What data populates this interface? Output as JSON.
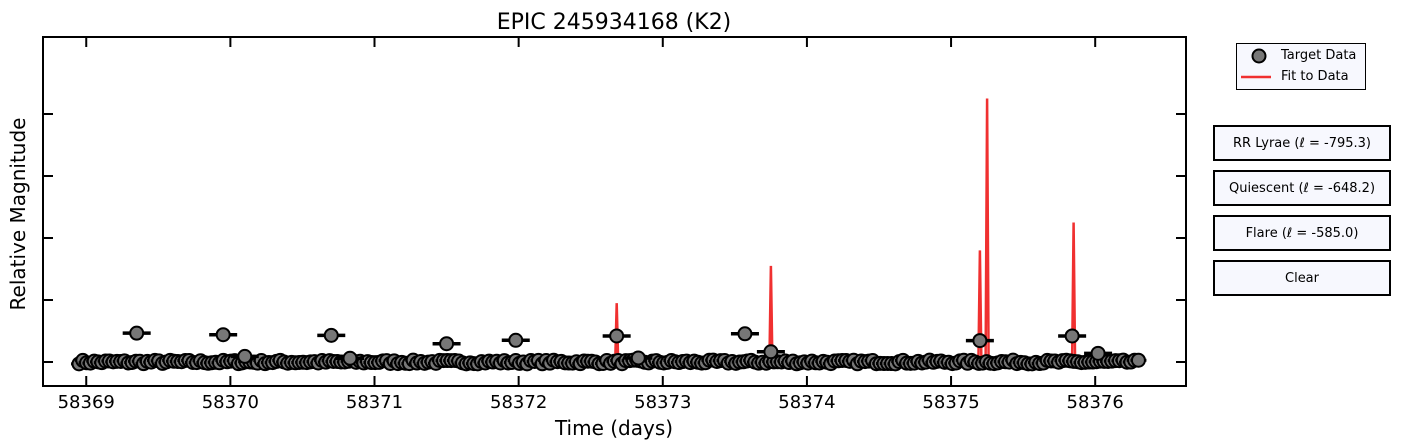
{
  "chart_data": {
    "type": "scatter",
    "title": "EPIC 245934168 (K2)",
    "xlabel": "Time (days)",
    "ylabel": "Relative Magnitude",
    "xlim": [
      58368.7,
      58376.63
    ],
    "ylim": [
      0,
      1
    ],
    "x_ticks": [
      58369,
      58370,
      58371,
      58372,
      58373,
      58374,
      58375,
      58376
    ],
    "y_ticks": [
      0.0,
      0.2,
      0.4,
      0.6,
      0.8
    ],
    "y_tick_labels_visible": false,
    "x_range": [
      58368.95,
      58376.3
    ],
    "baseline": 0.0,
    "points_per_day": 38,
    "elevated_points": [
      {
        "x": 58369.35,
        "y": 0.093
      },
      {
        "x": 58369.95,
        "y": 0.088
      },
      {
        "x": 58370.7,
        "y": 0.086
      },
      {
        "x": 58371.5,
        "y": 0.059
      },
      {
        "x": 58371.98,
        "y": 0.07
      },
      {
        "x": 58372.68,
        "y": 0.084
      },
      {
        "x": 58373.57,
        "y": 0.091
      },
      {
        "x": 58373.75,
        "y": 0.033
      },
      {
        "x": 58375.2,
        "y": 0.069
      },
      {
        "x": 58375.84,
        "y": 0.084
      },
      {
        "x": 58376.02,
        "y": 0.028
      },
      {
        "x": 58370.1,
        "y": 0.018
      },
      {
        "x": 58370.83,
        "y": 0.012
      },
      {
        "x": 58372.83,
        "y": 0.013
      }
    ],
    "series": [
      {
        "name": "Target Data",
        "color": "#777777"
      },
      {
        "name": "Fit to Data",
        "color": "#f03030"
      }
    ],
    "fit_spikes": [
      {
        "x": 58372.68,
        "y": 0.19
      },
      {
        "x": 58373.75,
        "y": 0.31
      },
      {
        "x": 58375.2,
        "y": 0.36
      },
      {
        "x": 58375.25,
        "y": 0.85
      },
      {
        "x": 58375.85,
        "y": 0.45
      }
    ],
    "legend_position": "upper-left-outside-right",
    "grid": false
  },
  "buttons": [
    "RR Lyrae (ℓ = -795.3)",
    "Quiescent (ℓ = -648.2)",
    "Flare (ℓ = -585.0)",
    "Clear"
  ]
}
